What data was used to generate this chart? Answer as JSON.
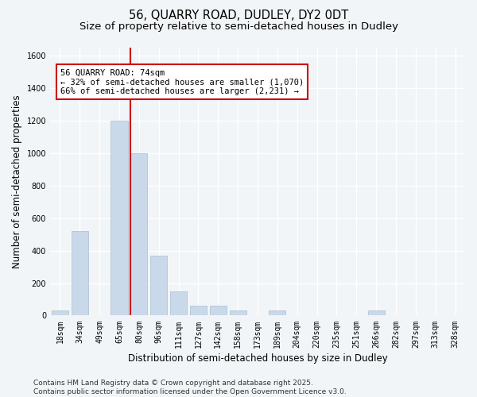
{
  "title_line1": "56, QUARRY ROAD, DUDLEY, DY2 0DT",
  "title_line2": "Size of property relative to semi-detached houses in Dudley",
  "xlabel": "Distribution of semi-detached houses by size in Dudley",
  "ylabel": "Number of semi-detached properties",
  "categories": [
    "18sqm",
    "34sqm",
    "49sqm",
    "65sqm",
    "80sqm",
    "96sqm",
    "111sqm",
    "127sqm",
    "142sqm",
    "158sqm",
    "173sqm",
    "189sqm",
    "204sqm",
    "220sqm",
    "235sqm",
    "251sqm",
    "266sqm",
    "282sqm",
    "297sqm",
    "313sqm",
    "328sqm"
  ],
  "values": [
    30,
    520,
    0,
    1200,
    1000,
    370,
    150,
    60,
    60,
    30,
    0,
    30,
    0,
    0,
    0,
    0,
    30,
    0,
    0,
    0,
    0
  ],
  "bar_color": "#c9d9ea",
  "bar_edgecolor": "#a8bfd0",
  "ref_line_x": 3.58,
  "ref_line_color": "#cc0000",
  "annotation_text": "56 QUARRY ROAD: 74sqm\n← 32% of semi-detached houses are smaller (1,070)\n66% of semi-detached houses are larger (2,231) →",
  "annotation_box_facecolor": "#ffffff",
  "annotation_box_edgecolor": "#cc0000",
  "ylim": [
    0,
    1650
  ],
  "yticks": [
    0,
    200,
    400,
    600,
    800,
    1000,
    1200,
    1400,
    1600
  ],
  "footer_text": "Contains HM Land Registry data © Crown copyright and database right 2025.\nContains public sector information licensed under the Open Government Licence v3.0.",
  "background_color": "#f2f5f7",
  "plot_background_color": "#f2f5f7",
  "grid_color": "#ffffff",
  "title_fontsize": 10.5,
  "subtitle_fontsize": 9.5,
  "tick_fontsize": 7,
  "label_fontsize": 8.5,
  "footer_fontsize": 6.5,
  "annotation_fontsize": 7.5
}
